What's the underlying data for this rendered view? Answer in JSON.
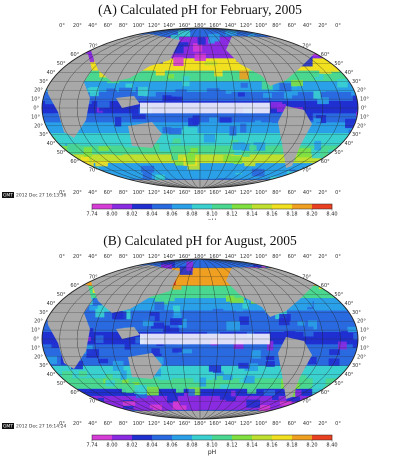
{
  "maps": [
    {
      "title": "(A) Calculated pH for February, 2005",
      "stamp": "2012 Dec 27 16:13:36"
    },
    {
      "title": "(B) Calculated pH for August, 2005",
      "stamp": "2012 Dec 27 16:14:24"
    }
  ],
  "gmt_logo": "GMT",
  "lon_ticks": [
    "0°",
    "20°",
    "40°",
    "60°",
    "80°",
    "100°",
    "120°",
    "140°",
    "160°",
    "180°",
    "160°",
    "140°",
    "120°",
    "100°",
    "80°",
    "60°",
    "40°",
    "20°",
    "0°"
  ],
  "lat_ticks": [
    "70°",
    "60°",
    "50°",
    "40°",
    "30°",
    "20°",
    "10°",
    "0°",
    "10°",
    "20°",
    "30°",
    "40°",
    "50°",
    "60°",
    "70°"
  ],
  "colorbar": {
    "label": "pH",
    "ticks": [
      "7.74",
      "8.00",
      "8.02",
      "8.04",
      "8.06",
      "8.08",
      "8.10",
      "8.12",
      "8.14",
      "8.16",
      "8.18",
      "8.20",
      "8.40"
    ],
    "colors": [
      "#d63cd6",
      "#8a2be2",
      "#2030d0",
      "#2a6ae0",
      "#2aa0e8",
      "#3ad0d0",
      "#4ad890",
      "#80e040",
      "#c0e030",
      "#f0e020",
      "#f0a020",
      "#e84020"
    ]
  },
  "colors": {
    "land": "#a8a8a8",
    "map_border": "#222222",
    "ocean_equator": "#3aa0ea"
  }
}
